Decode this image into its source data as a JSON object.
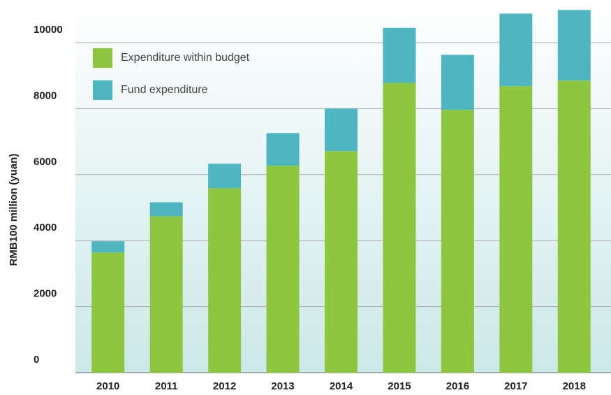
{
  "chart_data": {
    "type": "stacked_bar",
    "y_axis_label": "RMB100 million (yuan)",
    "categories": [
      "2010",
      "2011",
      "2012",
      "2013",
      "2014",
      "2015",
      "2016",
      "2017",
      "2018"
    ],
    "series": [
      {
        "name": "Expenditure within budget",
        "color": "#8dc63f",
        "values": [
          3640,
          4740,
          5590,
          6270,
          6710,
          8780,
          7960,
          8680,
          8850
        ]
      },
      {
        "name": "Fund expenditure",
        "color": "#4db6c1",
        "values": [
          340,
          420,
          740,
          990,
          1290,
          1670,
          1670,
          2200,
          2140
        ]
      }
    ],
    "ylim": [
      0,
      11250
    ],
    "yticks": [
      0,
      2000,
      4000,
      6000,
      8000,
      10000
    ],
    "grid": true,
    "legend": "upper left"
  }
}
